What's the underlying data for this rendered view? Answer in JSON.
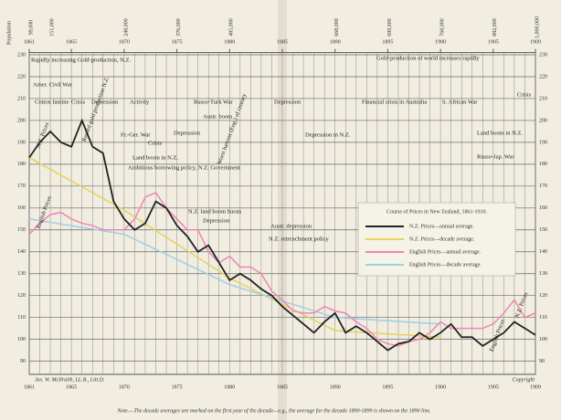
{
  "chart_data": {
    "type": "line",
    "legend_title": "Course of Prices in New Zealand, 1861-1910.",
    "population_label": "Population",
    "population": {
      "x": [
        1861,
        1863,
        1870,
        1875,
        1880,
        1890,
        1895,
        1900,
        1905,
        1909
      ],
      "labels": [
        "99,000",
        "151,000",
        "248,000",
        "376,000",
        "485,000",
        "668,000",
        "699,000",
        "768,000",
        "882,000",
        "1,000,000"
      ]
    },
    "note": "Note.—The decade averages are marked on the first year of the decade—e.g., the average for the decade 1890-1899 is shown on the 1890 line.",
    "credit": "Jas. W. McIlraith, LL.B., Litt.D.",
    "copyright": "Copyright",
    "xlim": [
      1861,
      1909
    ],
    "xticks": [
      1861,
      1865,
      1870,
      1875,
      1880,
      1885,
      1890,
      1895,
      1900,
      1905,
      1909
    ],
    "ylim": [
      84,
      231
    ],
    "yticks": [
      90,
      100,
      110,
      120,
      130,
      140,
      150,
      160,
      170,
      180,
      190,
      200,
      210,
      220,
      230
    ],
    "grid": true,
    "series": [
      {
        "name": "N.Z. Prices—annual average.",
        "color": "#222222",
        "x": [
          1861,
          1862,
          1863,
          1864,
          1865,
          1866,
          1867,
          1868,
          1869,
          1870,
          1871,
          1872,
          1873,
          1874,
          1875,
          1876,
          1877,
          1878,
          1879,
          1880,
          1881,
          1882,
          1883,
          1884,
          1885,
          1886,
          1887,
          1888,
          1889,
          1890,
          1891,
          1892,
          1893,
          1894,
          1895,
          1896,
          1897,
          1898,
          1899,
          1900,
          1901,
          1902,
          1903,
          1904,
          1905,
          1906,
          1907,
          1908,
          1909
        ],
        "values": [
          183,
          190,
          195,
          190,
          188,
          200,
          188,
          185,
          163,
          155,
          150,
          153,
          163,
          160,
          152,
          147,
          140,
          143,
          135,
          127,
          130,
          127,
          123,
          120,
          115,
          111,
          107,
          103,
          108,
          112,
          103,
          106,
          103,
          99,
          95,
          98,
          99,
          103,
          100,
          103,
          107,
          101,
          101,
          97,
          100,
          103,
          108,
          105,
          102
        ]
      },
      {
        "name": "N.Z. Prices—decade average.",
        "color": "#e6d35c",
        "x": [
          1861,
          1870,
          1880,
          1890,
          1900
        ],
        "values": [
          183,
          159,
          128,
          104,
          101
        ]
      },
      {
        "name": "English Prices—annual average.",
        "color": "#ef86b6",
        "x": [
          1861,
          1862,
          1863,
          1864,
          1865,
          1866,
          1867,
          1868,
          1869,
          1870,
          1871,
          1872,
          1873,
          1874,
          1875,
          1876,
          1877,
          1878,
          1879,
          1880,
          1881,
          1882,
          1883,
          1884,
          1885,
          1886,
          1887,
          1888,
          1889,
          1890,
          1891,
          1892,
          1893,
          1894,
          1895,
          1896,
          1897,
          1898,
          1899,
          1900,
          1901,
          1902,
          1903,
          1904,
          1905,
          1906,
          1907,
          1908,
          1909
        ],
        "values": [
          148,
          153,
          157,
          158,
          155,
          153,
          152,
          150,
          150,
          150,
          155,
          165,
          167,
          160,
          155,
          150,
          150,
          140,
          135,
          138,
          133,
          133,
          130,
          122,
          118,
          113,
          112,
          112,
          115,
          113,
          112,
          108,
          105,
          100,
          98,
          97,
          99,
          100,
          103,
          108,
          105,
          105,
          105,
          105,
          107,
          112,
          118,
          110,
          112
        ]
      },
      {
        "name": "English Prices—decade average.",
        "color": "#9fcfe3",
        "x": [
          1861,
          1870,
          1880,
          1890,
          1900
        ],
        "values": [
          155,
          148,
          125,
          110,
          107
        ]
      }
    ],
    "annotations": [
      "Rapidly increasing Gold-production, N.Z.",
      "Amer. Civil War",
      "Cotton famine",
      "Crisis",
      "Depression",
      "Activity",
      "Fr.-Ger. War",
      "Crisis",
      "Depression",
      "Land boom in N.Z.",
      "Ambitious borrowing policy, N.Z. Government",
      "Russo-Turk War",
      "Austr. boom",
      "N.Z. land boom bursts",
      "Depression",
      "Depression",
      "Austr. depression",
      "N.Z. retrenchment policy",
      "Depression in N.Z.",
      "Financial crisis in Australia",
      "Gold-production of world increases rapidly",
      "S. African War",
      "Land boom in N.Z.",
      "Russo-Jap. War",
      "Crisis",
      "Record gold production N.Z.",
      "Worst harvest (Eng.) of century",
      "N.Z. Prices",
      "English Prices",
      "English Prices",
      "N.Z. Prices"
    ]
  }
}
